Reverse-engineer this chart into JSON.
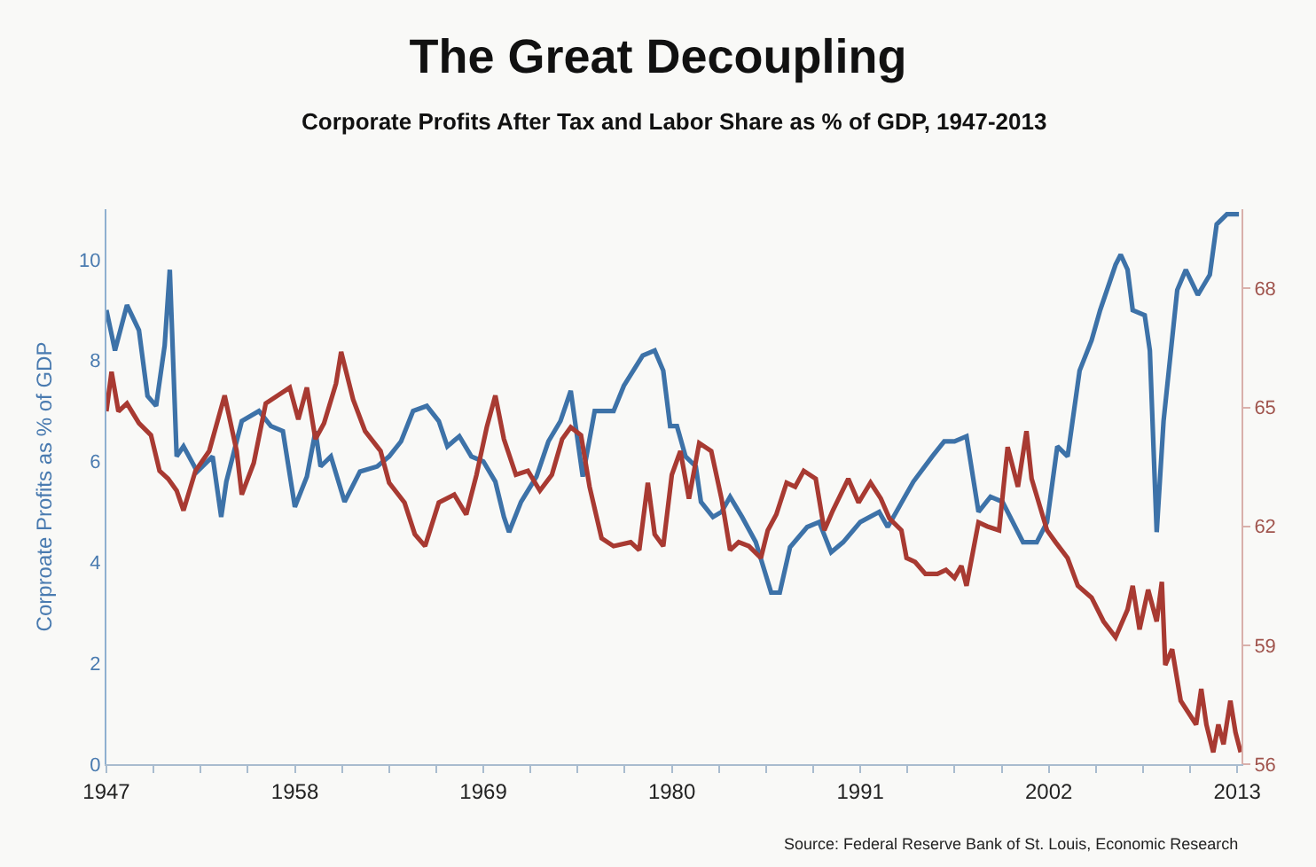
{
  "chart_data": {
    "type": "line",
    "title": "The Great Decoupling",
    "subtitle": "Corporate Profits After Tax and Labor Share as % of GDP, 1947-2013",
    "ylabel": "Corproate Profits as % of GDP",
    "xlim": [
      1947,
      2013.25
    ],
    "xticks": [
      1947,
      {
        "value": 1949.75,
        "label": null
      },
      {
        "value": 1952.5,
        "label": null
      },
      {
        "value": 1955.25,
        "label": null
      },
      1958,
      {
        "value": 1960.75,
        "label": null
      },
      {
        "value": 1963.5,
        "label": null
      },
      {
        "value": 1966.25,
        "label": null
      },
      1969,
      {
        "value": 1971.75,
        "label": null
      },
      {
        "value": 1974.5,
        "label": null
      },
      {
        "value": 1977.25,
        "label": null
      },
      1980,
      {
        "value": 1982.75,
        "label": null
      },
      {
        "value": 1985.5,
        "label": null
      },
      {
        "value": 1988.25,
        "label": null
      },
      1991,
      {
        "value": 1993.75,
        "label": null
      },
      {
        "value": 1996.5,
        "label": null
      },
      {
        "value": 1999.25,
        "label": null
      },
      2002,
      {
        "value": 2004.75,
        "label": null
      },
      {
        "value": 2007.5,
        "label": null
      },
      {
        "value": 2010.25,
        "label": null
      },
      2013
    ],
    "ylim": [
      0,
      11
    ],
    "yticks": [
      0,
      2,
      4,
      6,
      8,
      10
    ],
    "y2lim": [
      56,
      70
    ],
    "y2ticks": [
      56,
      59,
      62,
      65,
      68
    ],
    "grid": false,
    "marker": "none",
    "line_style": "solid",
    "annotations": [
      "Source: Federal Reserve Bank of St. Louis, Economic Research"
    ],
    "series": [
      {
        "color": "#3d72a8",
        "x": [
          1947.0,
          1947.5,
          1948.2,
          1948.9,
          1949.4,
          1949.9,
          1950.4,
          1950.7,
          1951.1,
          1951.5,
          1952.3,
          1953.2,
          1953.7,
          1954.0,
          1954.9,
          1955.9,
          1956.6,
          1957.3,
          1958.0,
          1958.7,
          1959.2,
          1959.5,
          1960.1,
          1960.9,
          1961.8,
          1962.8,
          1963.5,
          1964.2,
          1964.9,
          1965.7,
          1966.4,
          1966.9,
          1967.6,
          1968.3,
          1969.0,
          1969.7,
          1970.2,
          1970.5,
          1971.2,
          1972.1,
          1972.8,
          1973.5,
          1974.1,
          1974.8,
          1975.5,
          1976.6,
          1977.2,
          1978.3,
          1979.0,
          1979.5,
          1979.9,
          1980.3,
          1980.8,
          1981.4,
          1981.7,
          1982.4,
          1982.9,
          1983.4,
          1984.1,
          1984.9,
          1985.8,
          1986.3,
          1986.9,
          1987.9,
          1988.6,
          1989.3,
          1990.0,
          1991.0,
          1992.1,
          1992.6,
          1993.1,
          1994.1,
          1995.2,
          1995.9,
          1996.5,
          1997.2,
          1997.9,
          1998.6,
          1999.3,
          2000.5,
          2001.3,
          2001.9,
          2002.5,
          2003.1,
          2003.8,
          2004.5,
          2005.0,
          2005.9,
          2006.2,
          2006.6,
          2006.9,
          2007.6,
          2007.9,
          2008.3,
          2008.7,
          2009.5,
          2010.0,
          2010.7,
          2011.4,
          2011.8,
          2012.4,
          2013.1
        ],
        "values": [
          9.0,
          8.2,
          9.1,
          8.6,
          7.3,
          7.1,
          8.3,
          9.8,
          6.1,
          6.3,
          5.8,
          6.1,
          4.9,
          5.6,
          6.8,
          7.0,
          6.7,
          6.6,
          5.1,
          5.7,
          6.6,
          5.9,
          6.1,
          5.2,
          5.8,
          5.9,
          6.1,
          6.4,
          7.0,
          7.1,
          6.8,
          6.3,
          6.5,
          6.1,
          6.0,
          5.6,
          4.9,
          4.6,
          5.2,
          5.7,
          6.4,
          6.8,
          7.4,
          5.7,
          7.0,
          7.0,
          7.5,
          8.1,
          8.2,
          7.8,
          6.7,
          6.7,
          6.1,
          5.9,
          5.2,
          4.9,
          5.0,
          5.3,
          4.9,
          4.4,
          3.4,
          3.4,
          4.3,
          4.7,
          4.8,
          4.2,
          4.4,
          4.8,
          5.0,
          4.7,
          5.0,
          5.6,
          6.1,
          6.4,
          6.4,
          6.5,
          5.0,
          5.3,
          5.2,
          4.4,
          4.4,
          4.8,
          6.3,
          6.1,
          7.8,
          8.4,
          9.0,
          9.9,
          10.1,
          9.8,
          9.0,
          8.9,
          8.2,
          4.6,
          6.8,
          9.4,
          9.8,
          9.3,
          9.7,
          10.7,
          10.9,
          10.9
        ]
      },
      {
        "color": "#a83a32",
        "axis": "y2",
        "x": [
          1947.0,
          1947.3,
          1947.7,
          1948.2,
          1948.9,
          1949.6,
          1950.1,
          1950.6,
          1951.1,
          1951.5,
          1952.2,
          1953.0,
          1953.9,
          1954.6,
          1954.9,
          1955.6,
          1956.3,
          1957.0,
          1957.7,
          1958.2,
          1958.7,
          1959.2,
          1959.7,
          1960.4,
          1960.7,
          1961.4,
          1962.1,
          1963.0,
          1963.5,
          1964.4,
          1965.0,
          1965.6,
          1966.4,
          1967.3,
          1968.0,
          1968.6,
          1969.2,
          1969.7,
          1970.2,
          1970.9,
          1971.6,
          1972.3,
          1973.0,
          1973.6,
          1974.1,
          1974.7,
          1975.2,
          1975.9,
          1976.6,
          1977.6,
          1978.1,
          1978.6,
          1979.0,
          1979.5,
          1980.0,
          1980.5,
          1981.0,
          1981.6,
          1982.3,
          1982.9,
          1983.4,
          1983.9,
          1984.5,
          1985.2,
          1985.6,
          1986.1,
          1986.7,
          1987.2,
          1987.7,
          1988.4,
          1988.9,
          1989.4,
          1990.3,
          1990.9,
          1991.6,
          1992.2,
          1992.7,
          1993.4,
          1993.7,
          1994.2,
          1994.8,
          1995.5,
          1996.0,
          1996.5,
          1996.9,
          1997.2,
          1997.9,
          1998.4,
          1999.1,
          1999.6,
          2000.2,
          2000.7,
          2001.0,
          2001.9,
          2002.4,
          2003.1,
          2003.7,
          2004.5,
          2005.2,
          2005.9,
          2006.6,
          2006.9,
          2007.3,
          2007.8,
          2008.3,
          2008.6,
          2008.8,
          2009.2,
          2009.7,
          2010.6,
          2010.9,
          2011.2,
          2011.6,
          2011.9,
          2012.2,
          2012.6,
          2012.9,
          2013.2
        ],
        "values": [
          64.9,
          65.9,
          64.9,
          65.1,
          64.6,
          64.3,
          63.4,
          63.2,
          62.9,
          62.4,
          63.4,
          63.9,
          65.3,
          63.9,
          62.8,
          63.6,
          65.1,
          65.3,
          65.5,
          64.7,
          65.5,
          64.2,
          64.6,
          65.6,
          66.4,
          65.2,
          64.4,
          63.9,
          63.1,
          62.6,
          61.8,
          61.5,
          62.6,
          62.8,
          62.3,
          63.3,
          64.5,
          65.3,
          64.2,
          63.3,
          63.4,
          62.9,
          63.3,
          64.2,
          64.5,
          64.3,
          63.0,
          61.7,
          61.5,
          61.6,
          61.4,
          63.1,
          61.8,
          61.5,
          63.3,
          63.9,
          62.7,
          64.1,
          63.9,
          62.7,
          61.4,
          61.6,
          61.5,
          61.2,
          61.9,
          62.3,
          63.1,
          63.0,
          63.4,
          63.2,
          61.9,
          62.4,
          63.2,
          62.6,
          63.1,
          62.7,
          62.2,
          61.9,
          61.2,
          61.1,
          60.8,
          60.8,
          60.9,
          60.7,
          61.0,
          60.5,
          62.1,
          62.0,
          61.9,
          64.0,
          63.0,
          64.4,
          63.2,
          61.9,
          61.6,
          61.2,
          60.5,
          60.2,
          59.6,
          59.2,
          59.9,
          60.5,
          59.4,
          60.4,
          59.6,
          60.6,
          58.5,
          58.9,
          57.6,
          57.0,
          57.9,
          57.0,
          56.3,
          57.0,
          56.5,
          57.6,
          56.8,
          56.3
        ]
      }
    ]
  }
}
